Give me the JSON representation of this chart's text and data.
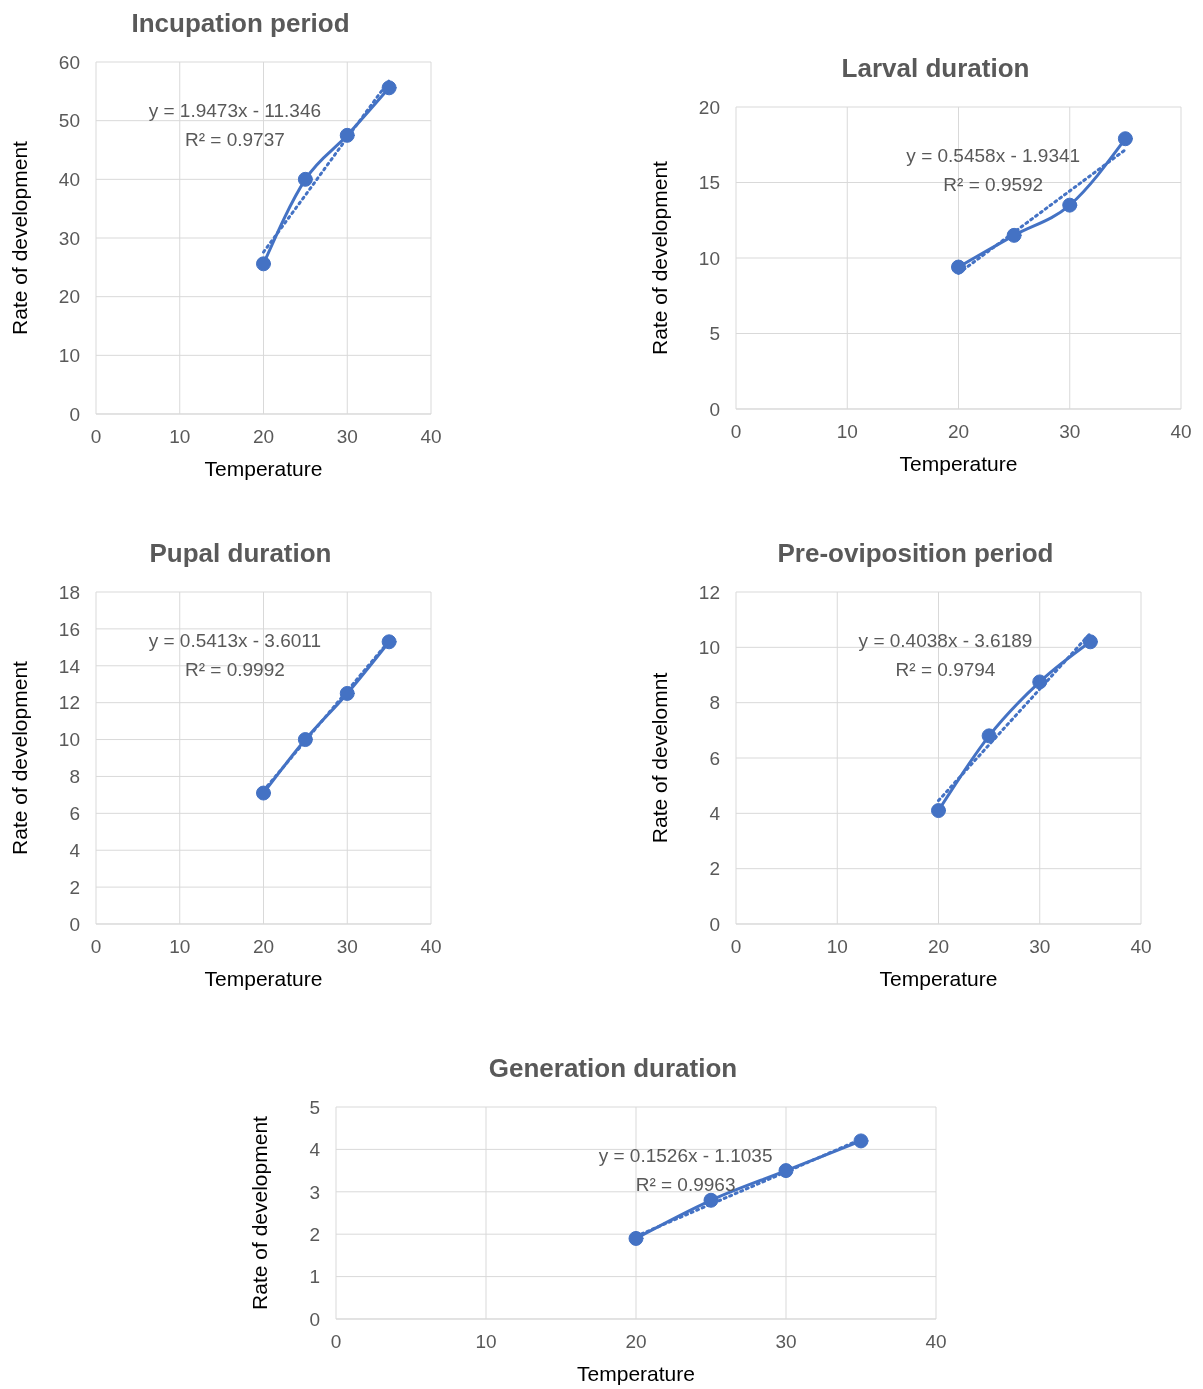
{
  "chart_data": [
    {
      "type": "line",
      "title": "Incupation period",
      "xlabel": "Temperature",
      "ylabel": "Rate of development",
      "x": [
        20,
        25,
        30,
        35
      ],
      "marker": "circle",
      "grid": true,
      "xlim": [
        0,
        40
      ],
      "xticks": [
        0,
        10,
        20,
        30,
        40
      ],
      "ylim": [
        0,
        60
      ],
      "yticks": [
        0,
        10,
        20,
        30,
        40,
        50,
        60
      ],
      "annotations": [
        "y = 1.9473x - 11.346",
        "R² = 0.9737"
      ],
      "series": [
        {
          "color": "#4472c4",
          "values": [
            25.6,
            40,
            47.5,
            55.6
          ]
        },
        {
          "type": "line",
          "color": "#4472c4",
          "values": [
            27.6,
            37.3,
            47.1,
            56.8
          ],
          "marker": "none",
          "line_style": "dotted"
        }
      ]
    },
    {
      "type": "line",
      "title": "Larval duration",
      "xlabel": "Temperature",
      "ylabel": "Rate of development",
      "x": [
        20,
        25,
        30,
        35
      ],
      "marker": "circle",
      "grid": true,
      "xlim": [
        0,
        40
      ],
      "xticks": [
        0,
        10,
        20,
        30,
        40
      ],
      "ylim": [
        0,
        20
      ],
      "yticks": [
        0,
        5,
        10,
        15,
        20
      ],
      "annotations": [
        "y = 0.5458x - 1.9341",
        "R² = 0.9592"
      ],
      "series": [
        {
          "color": "#4472c4",
          "values": [
            9.4,
            11.5,
            13.5,
            17.9
          ]
        },
        {
          "type": "line",
          "color": "#4472c4",
          "values": [
            8.98,
            11.71,
            14.44,
            17.17
          ],
          "marker": "none",
          "line_style": "dotted"
        }
      ]
    },
    {
      "type": "line",
      "title": "Pupal duration",
      "xlabel": "Temperature",
      "ylabel": "Rate of development",
      "x": [
        20,
        25,
        30,
        35
      ],
      "marker": "circle",
      "grid": true,
      "xlim": [
        0,
        40
      ],
      "xticks": [
        0,
        10,
        20,
        30,
        40
      ],
      "ylim": [
        0,
        18
      ],
      "yticks": [
        0,
        2,
        4,
        6,
        8,
        10,
        12,
        14,
        16,
        18
      ],
      "annotations": [
        "y = 0.5413x - 3.6011",
        "R² = 0.9992"
      ],
      "series": [
        {
          "color": "#4472c4",
          "values": [
            7.1,
            10,
            12.5,
            15.3
          ]
        },
        {
          "type": "line",
          "color": "#4472c4",
          "values": [
            7.23,
            9.93,
            12.64,
            15.35
          ],
          "marker": "none",
          "line_style": "dotted"
        }
      ]
    },
    {
      "type": "line",
      "title": "Pre-oviposition period",
      "xlabel": "Temperature",
      "ylabel": "Rate of develomnt",
      "x": [
        20,
        25,
        30,
        35
      ],
      "marker": "circle",
      "grid": true,
      "xlim": [
        0,
        40
      ],
      "xticks": [
        0,
        10,
        20,
        30,
        40
      ],
      "ylim": [
        0,
        12
      ],
      "yticks": [
        0,
        2,
        4,
        6,
        8,
        10,
        12
      ],
      "annotations": [
        "y = 0.4038x - 3.6189",
        "R² = 0.9794"
      ],
      "series": [
        {
          "color": "#4472c4",
          "values": [
            4.1,
            6.8,
            8.75,
            10.2
          ]
        },
        {
          "type": "line",
          "color": "#4472c4",
          "values": [
            4.46,
            6.48,
            8.49,
            10.51
          ],
          "marker": "none",
          "line_style": "dotted"
        }
      ]
    },
    {
      "type": "line",
      "title": "Generation duration",
      "xlabel": "Temperature",
      "ylabel": "Rate of development",
      "x": [
        20,
        25,
        30,
        35
      ],
      "marker": "circle",
      "grid": true,
      "xlim": [
        0,
        40
      ],
      "xticks": [
        0,
        10,
        20,
        30,
        40
      ],
      "ylim": [
        0,
        5
      ],
      "yticks": [
        0,
        1,
        2,
        3,
        4,
        5
      ],
      "annotations": [
        "y = 0.1526x - 1.1035",
        "R² = 0.9963"
      ],
      "series": [
        {
          "color": "#4472c4",
          "values": [
            1.9,
            2.8,
            3.5,
            4.2
          ]
        },
        {
          "type": "line",
          "color": "#4472c4",
          "values": [
            1.95,
            2.71,
            3.47,
            4.24
          ],
          "marker": "none",
          "line_style": "dotted"
        }
      ]
    }
  ]
}
